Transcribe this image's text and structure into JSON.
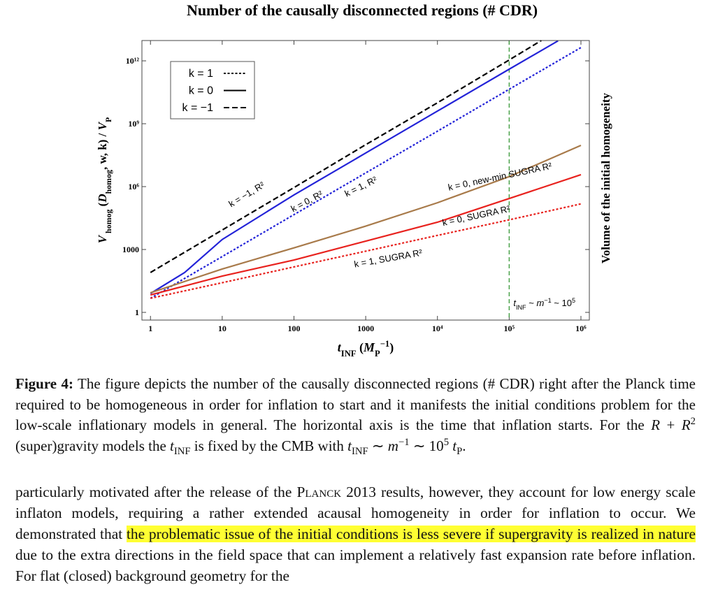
{
  "chart_data": {
    "type": "line",
    "title": "Number of the causally disconnected regions (# CDR)",
    "xlabel": [
      {
        "t": "t",
        "s": "italic"
      },
      {
        "t": "INF",
        "s": "sub"
      },
      {
        "t": " (",
        "s": ""
      },
      {
        "t": "M",
        "s": "italic"
      },
      {
        "t": "P",
        "s": "sub"
      },
      {
        "t": "−1",
        "s": "sup"
      },
      {
        "t": ")",
        "s": ""
      }
    ],
    "ylabel": [
      {
        "t": "V",
        "s": "italic"
      },
      {
        "t": " homog",
        "s": "sub"
      },
      {
        "t": " (",
        "s": ""
      },
      {
        "t": "D",
        "s": "italic"
      },
      {
        "t": "homog",
        "s": "sub"
      },
      {
        "t": ", w, k) / ",
        "s": ""
      },
      {
        "t": "V",
        "s": "italic"
      },
      {
        "t": "P",
        "s": "sub"
      }
    ],
    "y2label": "Volume of the initial homogeneity",
    "xlog": true,
    "ylog": true,
    "xlim": [
      0.76,
      1310000
    ],
    "ylim": [
      0.43,
      9300000000000
    ],
    "xticks": [
      1,
      10,
      100,
      1000,
      {
        "value": 10000,
        "label": "10⁴"
      },
      {
        "value": 100000,
        "label": "10⁵"
      },
      {
        "value": 1000000,
        "label": "10⁶"
      }
    ],
    "yticks": [
      1,
      1000,
      {
        "value": 1000000,
        "label": "10⁶"
      },
      {
        "value": 1000000000,
        "label": "10⁹"
      },
      {
        "value": 1000000000000,
        "label": "10¹²"
      }
    ],
    "legend": [
      {
        "label": "k = 1",
        "dash": "dotted"
      },
      {
        "label": "k = 0",
        "dash": "solid"
      },
      {
        "label": "k = −1",
        "dash": "dashed"
      }
    ],
    "series": [
      {
        "name": "k = −1, R²",
        "color": "#000000",
        "dash": "dashed",
        "x": [
          1,
          10,
          100,
          1000,
          10000,
          100000,
          280000
        ],
        "values": [
          80,
          8500,
          900000,
          100000000,
          10000000000,
          1100000000000,
          9300000000000
        ]
      },
      {
        "name": "k = 0, R²",
        "color": "#2323d8",
        "dash": "solid",
        "x": [
          1,
          3,
          10,
          100,
          1000,
          10000,
          100000,
          480000
        ],
        "values": [
          8,
          80,
          3000,
          400000,
          40000000,
          4000000000,
          400000000000,
          9000000000000
        ]
      },
      {
        "name": "k = 1, R²",
        "color": "#2323d8",
        "dash": "dotted",
        "x": [
          1,
          10,
          100,
          1000,
          10000,
          100000,
          1000000
        ],
        "values": [
          4.7,
          460,
          46000,
          4500000,
          440000000,
          44000000000,
          4300000000000
        ]
      },
      {
        "name": "k = 0,  new-min SUGRA R²",
        "color": "#a87a4a",
        "dash": "solid",
        "x": [
          1,
          10,
          100,
          1000,
          10000,
          100000,
          1000000
        ],
        "values": [
          8.6,
          117,
          1200,
          13000,
          170000,
          3000000,
          93000000
        ]
      },
      {
        "name": "k = 0, SUGRA R²",
        "color": "#e8221e",
        "dash": "solid",
        "x": [
          1,
          10,
          100,
          1000,
          10000,
          100000,
          1000000
        ],
        "values": [
          6.8,
          54,
          316,
          2500,
          20000,
          270000,
          3700000
        ]
      },
      {
        "name": "k = 1, SUGRA R²",
        "color": "#e8221e",
        "dash": "dotted",
        "x": [
          1,
          10,
          100,
          1000,
          10000,
          100000,
          1000000
        ],
        "values": [
          4.7,
          26,
          148,
          830,
          4700,
          26000,
          150000
        ]
      }
    ],
    "vline": {
      "x": 100000,
      "color": "#3a9a3a",
      "label": [
        {
          "t": "t",
          "s": "italic"
        },
        {
          "t": "INF",
          "s": "sub"
        },
        {
          "t": " ~ ",
          "s": ""
        },
        {
          "t": "m",
          "s": "italic"
        },
        {
          "t": "−1",
          "s": "sup"
        },
        {
          "t": " ~ 10",
          "s": ""
        },
        {
          "t": "5",
          "s": "sup"
        }
      ]
    }
  },
  "caption": [
    {
      "t": "Figure 4:",
      "s": "bold"
    },
    {
      "t": " The figure depicts the number of the causally disconnected regions (# CDR) right after the Planck time required to be homogeneous in order for inflation to start and it manifests the initial conditions problem for the low-scale inflationary models in general. The horizontal axis is the time that inflation starts. For the ",
      "s": ""
    },
    {
      "t": "R",
      "s": "italic"
    },
    {
      "t": " + ",
      "s": ""
    },
    {
      "t": "R",
      "s": "italic"
    },
    {
      "t": "2",
      "s": "sup"
    },
    {
      "t": " (super)gravity models the ",
      "s": ""
    },
    {
      "t": "t",
      "s": "italic"
    },
    {
      "t": "INF",
      "s": "sub"
    },
    {
      "t": " is fixed by the CMB with ",
      "s": ""
    },
    {
      "t": "t",
      "s": "italic"
    },
    {
      "t": "INF",
      "s": "sub"
    },
    {
      "t": " ∼ ",
      "s": ""
    },
    {
      "t": "m",
      "s": "italic"
    },
    {
      "t": "−1",
      "s": "sup"
    },
    {
      "t": " ∼ 10",
      "s": ""
    },
    {
      "t": "5",
      "s": "sup"
    },
    {
      "t": " t",
      "s": "italic"
    },
    {
      "t": "P",
      "s": "sub"
    },
    {
      "t": ".",
      "s": ""
    }
  ],
  "paragraph": [
    {
      "t": "particularly motivated after the release of the ",
      "s": ""
    },
    {
      "t": "Planck",
      "s": "smallcaps"
    },
    {
      "t": " 2013 results, however, they account for low energy scale inflaton models, requiring a rather extended acausal homogeneity in order for inflation to occur. We demonstrated that ",
      "s": ""
    },
    {
      "t": "the problematic issue of the initial conditions is less severe if supergravity is realized in nature",
      "s": "highlight"
    },
    {
      "t": " due to the extra directions in the field space that can implement a relatively fast expansion rate before inflation.  For flat (closed) background geometry for the",
      "s": ""
    }
  ]
}
